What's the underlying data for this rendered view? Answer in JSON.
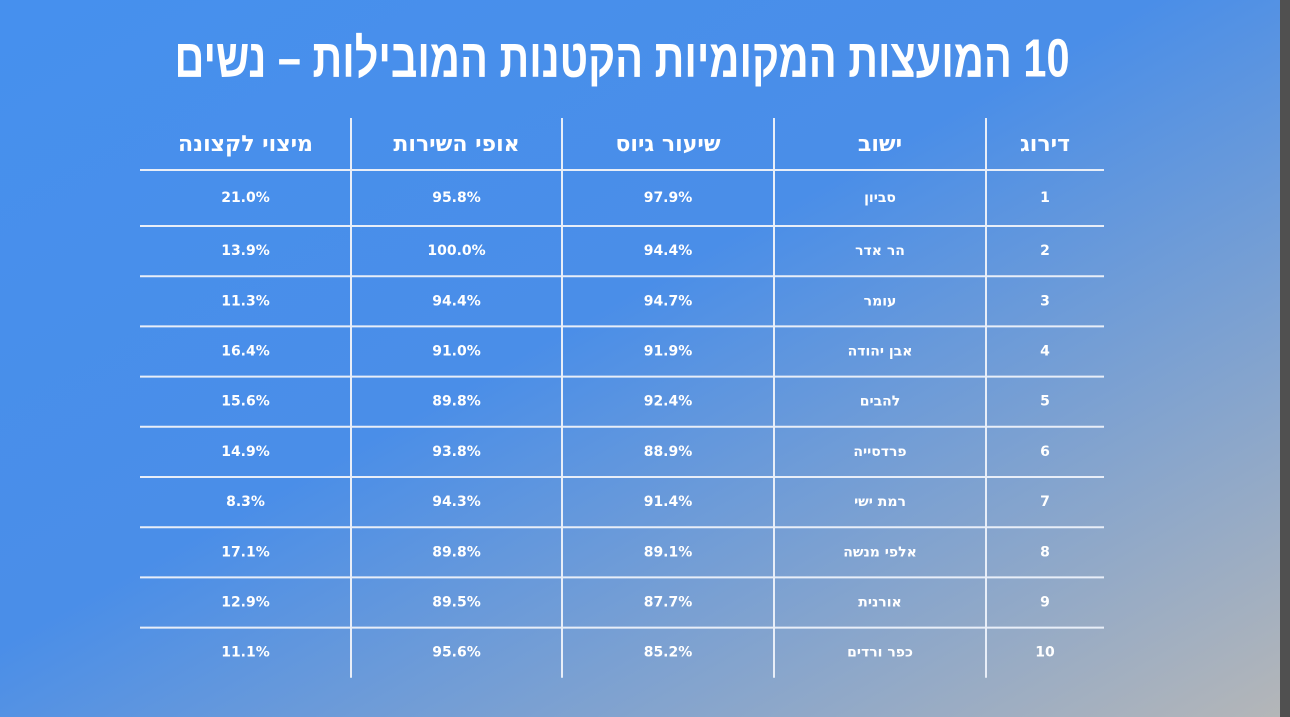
{
  "title": "10 המועצות המקומיות הקטנות המובילות – נשים",
  "table": {
    "headers": [
      "דירוג",
      "ישוב",
      "שיעור גיוס",
      "אופי השירות",
      "מיצוי לקצונה"
    ],
    "rows": [
      [
        "1",
        "סביון",
        "97.9%",
        "95.8%",
        "21.0%"
      ],
      [
        "2",
        "הר אדר",
        "94.4%",
        "100.0%",
        "13.9%"
      ],
      [
        "3",
        "עומר",
        "94.7%",
        "94.4%",
        "11.3%"
      ],
      [
        "4",
        "אבן יהודה",
        "91.9%",
        "91.0%",
        "16.4%"
      ],
      [
        "5",
        "להבים",
        "92.4%",
        "89.8%",
        "15.6%"
      ],
      [
        "6",
        "פרדסייה",
        "88.9%",
        "93.8%",
        "14.9%"
      ],
      [
        "7",
        "רמת ישי",
        "91.4%",
        "94.3%",
        "8.3%"
      ],
      [
        "8",
        "אלפי מנשה",
        "89.1%",
        "89.8%",
        "17.1%"
      ],
      [
        "9",
        "אורנית",
        "87.7%",
        "89.5%",
        "12.9%"
      ],
      [
        "10",
        "כפר ורדים",
        "85.2%",
        "95.6%",
        "11.1%"
      ]
    ]
  }
}
